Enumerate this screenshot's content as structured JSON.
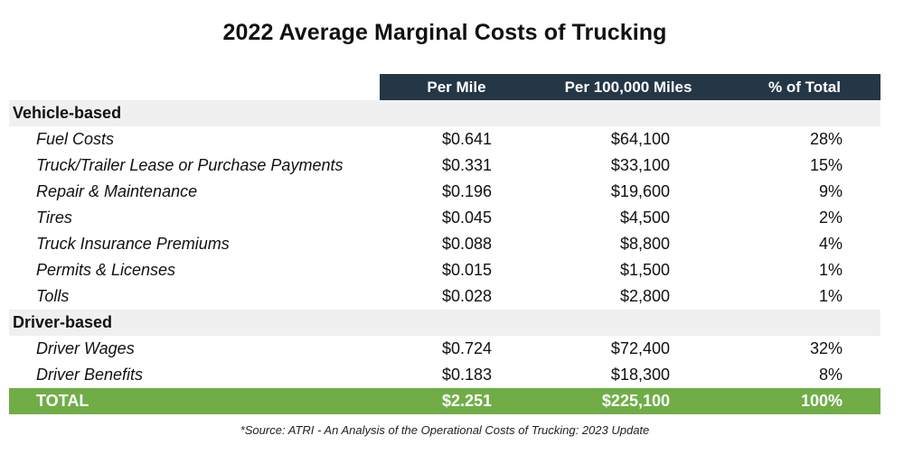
{
  "chart_data": {
    "type": "table",
    "title": "2022 Average Marginal Costs of Trucking",
    "columns": [
      "Per Mile",
      "Per 100,000 Miles",
      "% of Total"
    ],
    "sections": [
      {
        "name": "Vehicle-based",
        "rows": [
          {
            "label": "Fuel Costs",
            "per_mile": "$0.641",
            "per_100k": "$64,100",
            "pct": "28%"
          },
          {
            "label": "Truck/Trailer Lease or Purchase Payments",
            "per_mile": "$0.331",
            "per_100k": "$33,100",
            "pct": "15%"
          },
          {
            "label": "Repair & Maintenance",
            "per_mile": "$0.196",
            "per_100k": "$19,600",
            "pct": "9%"
          },
          {
            "label": "Tires",
            "per_mile": "$0.045",
            "per_100k": "$4,500",
            "pct": "2%"
          },
          {
            "label": "Truck Insurance Premiums",
            "per_mile": "$0.088",
            "per_100k": "$8,800",
            "pct": "4%"
          },
          {
            "label": "Permits & Licenses",
            "per_mile": "$0.015",
            "per_100k": "$1,500",
            "pct": "1%"
          },
          {
            "label": "Tolls",
            "per_mile": "$0.028",
            "per_100k": "$2,800",
            "pct": "1%"
          }
        ]
      },
      {
        "name": "Driver-based",
        "rows": [
          {
            "label": "Driver Wages",
            "per_mile": "$0.724",
            "per_100k": "$72,400",
            "pct": "32%"
          },
          {
            "label": "Driver Benefits",
            "per_mile": "$0.183",
            "per_100k": "$18,300",
            "pct": "8%"
          }
        ]
      }
    ],
    "total": {
      "label": "TOTAL",
      "per_mile": "$2.251",
      "per_100k": "$225,100",
      "pct": "100%"
    },
    "footnote": "*Source:  ATRI - An Analysis of the Operational Costs of Trucking: 2023 Update"
  },
  "colors": {
    "header_bg": "#253746",
    "total_bg": "#70ad47",
    "section_bg": "#f0f0f0"
  }
}
